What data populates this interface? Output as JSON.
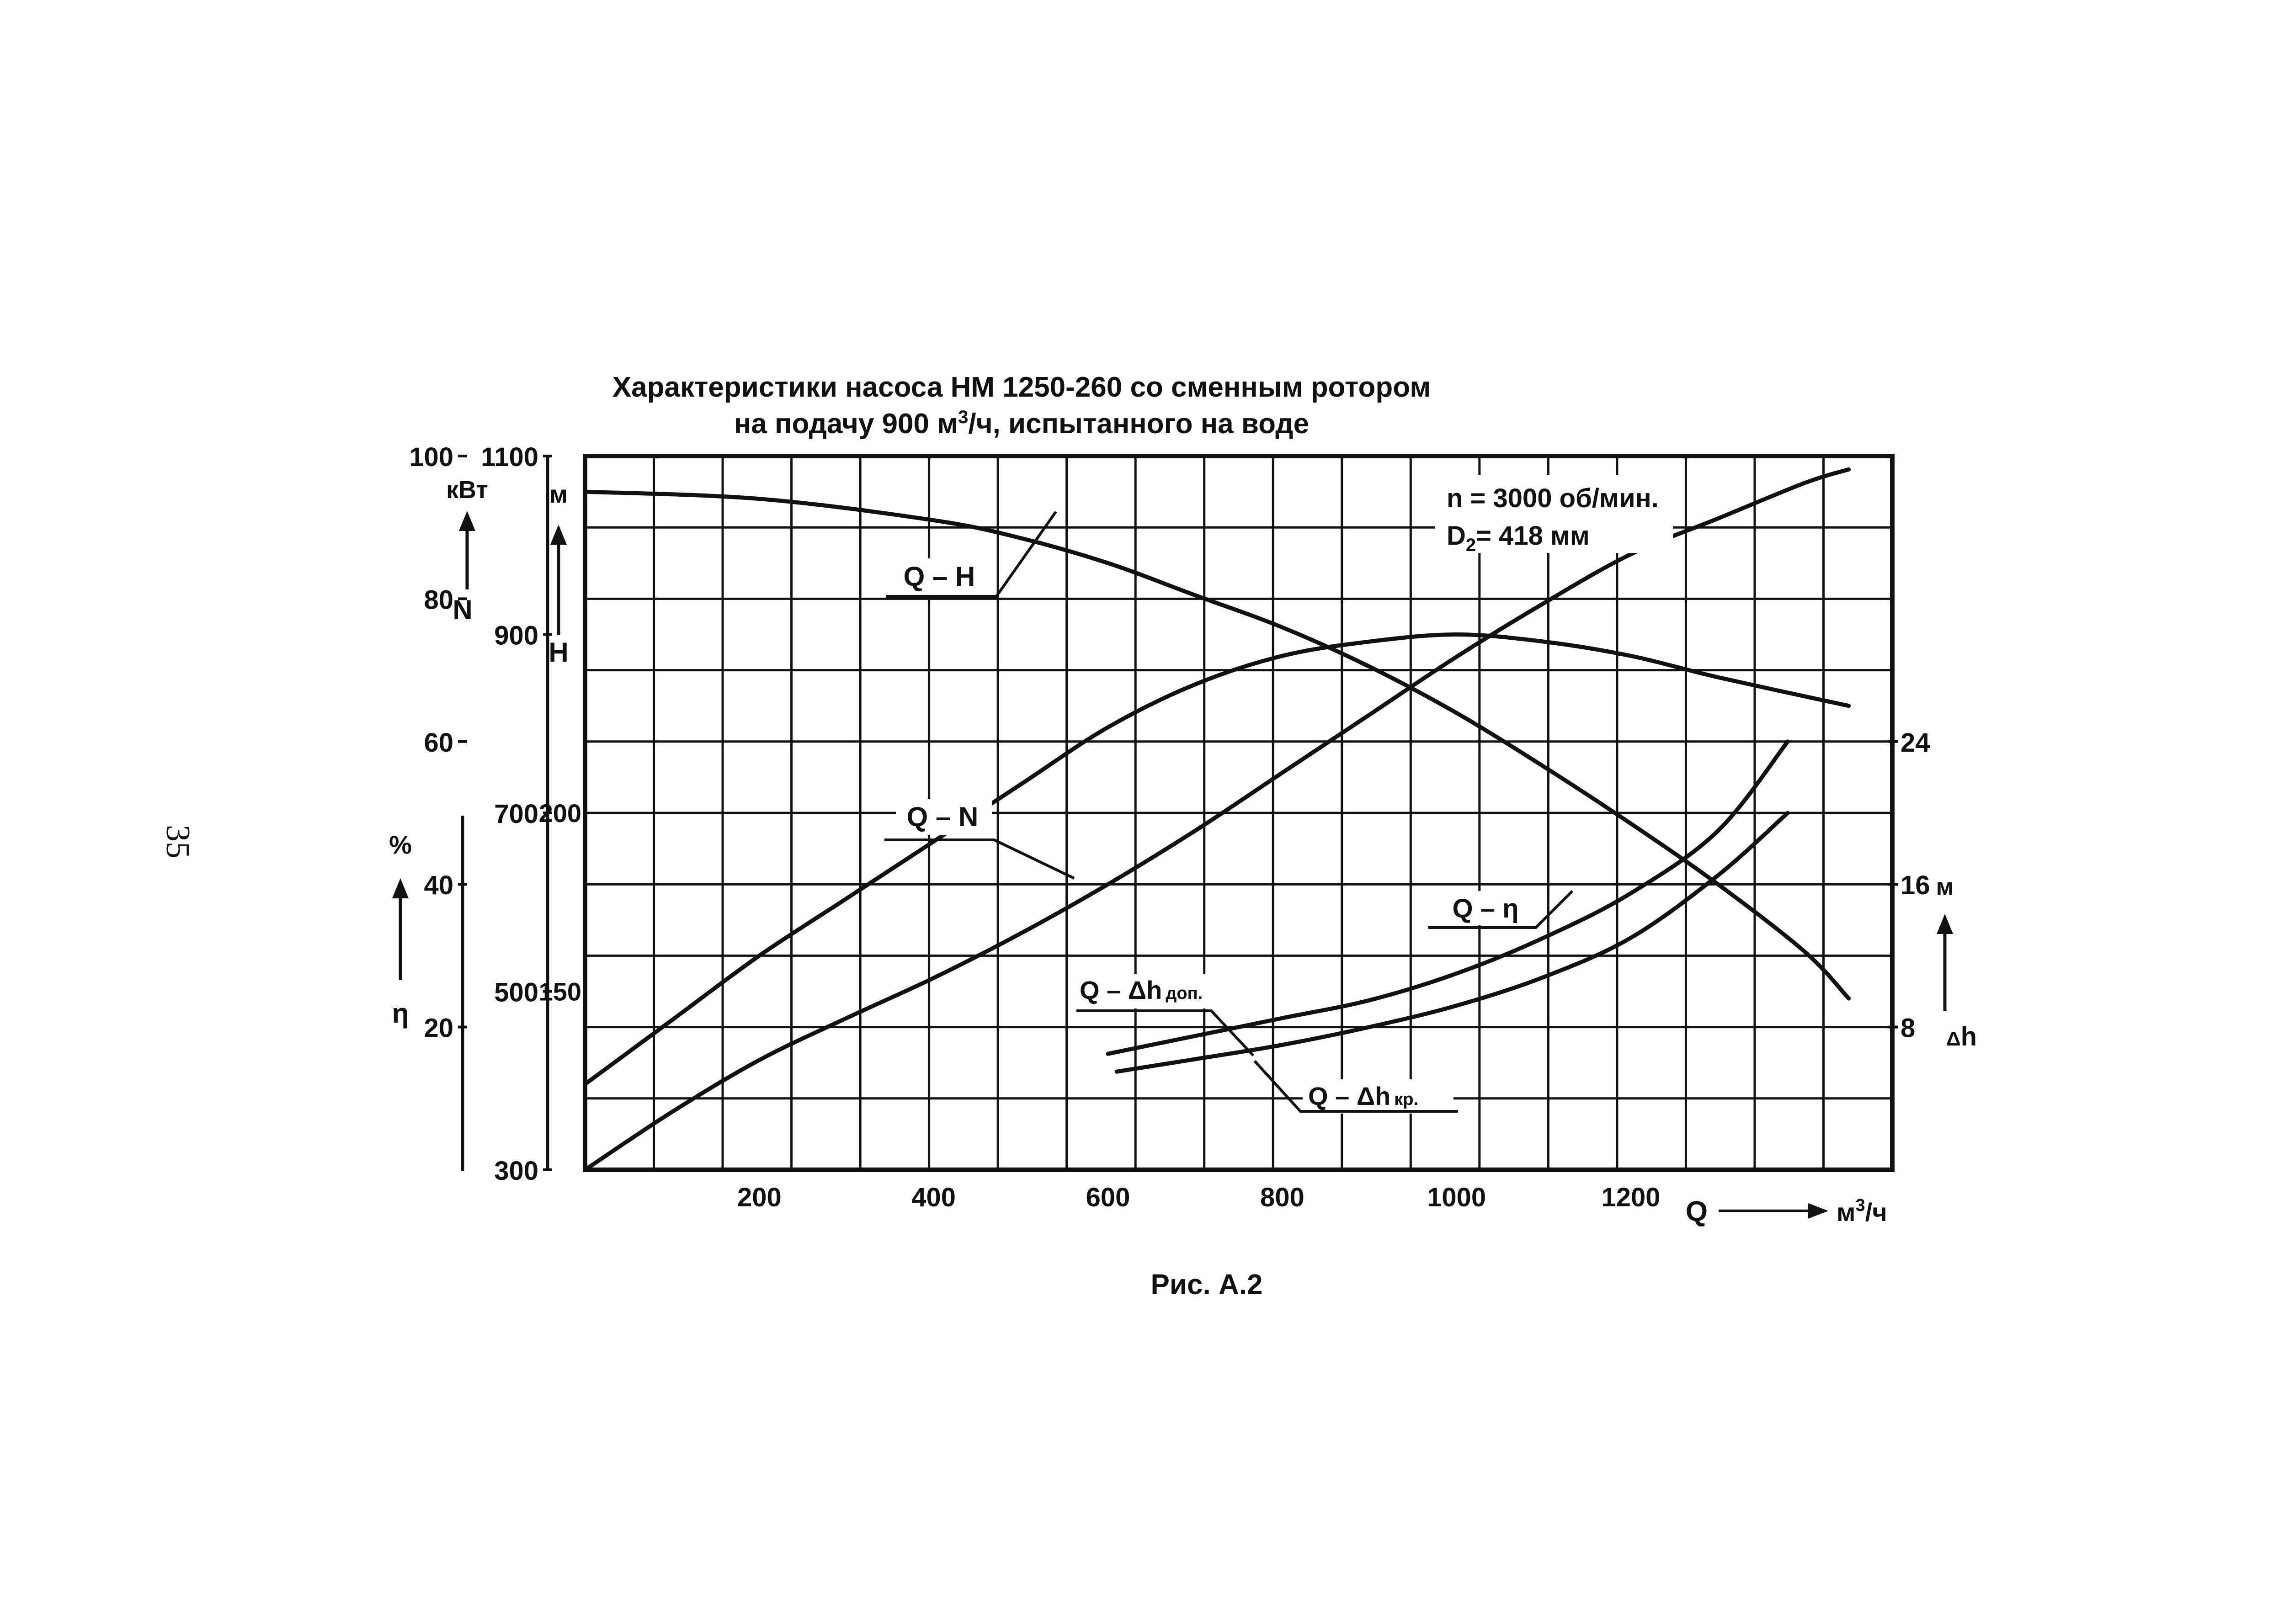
{
  "page": {
    "number": "35",
    "caption": "Рис. А.2"
  },
  "chart_data": {
    "type": "line",
    "title_line1": "Характеристики насоса НМ 1250-260 со сменным ротором",
    "title_line2_pre": "на подачу 900 м",
    "title_line2_sup": "3",
    "title_line2_post": "/ч, испытанного на воде",
    "annotation": {
      "speed": "n = 3000 об/мин.",
      "d_main": "D",
      "d_sub": "2",
      "d_value": "= 418  мм"
    },
    "x_axis": {
      "range": [
        0,
        1500
      ],
      "ticks": [
        200,
        400,
        600,
        800,
        1000,
        1200
      ],
      "tick_labels": [
        "200",
        "400",
        "600",
        "800",
        "1000",
        "1200"
      ],
      "symbol": "Q",
      "unit_pre": "м",
      "unit_sup": "3",
      "unit_post": "/ч"
    },
    "axes": {
      "N": {
        "symbol": "N",
        "unit": "кВт",
        "range": [
          300,
          1100
        ],
        "ticks": [
          "1100",
          "900",
          "700",
          "500",
          "300"
        ]
      },
      "H": {
        "symbol": "H",
        "unit": "м",
        "range": [
          100,
          300
        ],
        "ticks": [
          "200",
          "150"
        ]
      },
      "eta": {
        "symbol": "η",
        "unit": "%",
        "range": [
          0,
          100
        ],
        "ticks": [
          "100",
          "80",
          "60",
          "40",
          "20"
        ]
      },
      "dh": {
        "symbol_delta": "Δ",
        "symbol_h": "h",
        "unit": "м",
        "range": [
          0,
          40
        ],
        "ticks": [
          "24",
          "16",
          "8"
        ]
      }
    },
    "grid": true,
    "series": [
      {
        "label": "Q – H",
        "axis": "H",
        "x": [
          0,
          200,
          400,
          500,
          600,
          700,
          800,
          900,
          1000,
          1100,
          1200,
          1300,
          1400,
          1450
        ],
        "y": [
          290,
          288,
          282,
          277,
          270,
          261,
          252,
          241,
          228,
          213,
          197,
          180,
          161,
          148
        ]
      },
      {
        "label": "Q – N",
        "axis": "N",
        "x": [
          0,
          100,
          200,
          300,
          400,
          500,
          600,
          700,
          800,
          900,
          1000,
          1100,
          1200,
          1300,
          1400,
          1450
        ],
        "y": [
          300,
          365,
          423,
          470,
          515,
          565,
          620,
          680,
          745,
          810,
          875,
          935,
          990,
          1030,
          1070,
          1085
        ]
      },
      {
        "label": "Q – η",
        "axis": "eta",
        "x": [
          0,
          100,
          200,
          300,
          400,
          500,
          600,
          700,
          800,
          900,
          1000,
          1100,
          1200,
          1300,
          1450
        ],
        "y": [
          12,
          21,
          30,
          38,
          46,
          54,
          62,
          68,
          72,
          74,
          75,
          74,
          72,
          69,
          65
        ]
      },
      {
        "label": "Q – Δh доп.",
        "axis": "dh",
        "x": [
          600,
          700,
          800,
          900,
          1000,
          1100,
          1200,
          1300,
          1380
        ],
        "y": [
          6.5,
          7.5,
          8.5,
          9.5,
          11,
          13,
          15.5,
          19,
          24
        ]
      },
      {
        "label": "Q – Δh кр.",
        "axis": "dh",
        "x": [
          610,
          700,
          800,
          900,
          1000,
          1100,
          1200,
          1300,
          1380
        ],
        "y": [
          5.5,
          6.2,
          7,
          8,
          9.2,
          10.8,
          13,
          16.5,
          20
        ]
      }
    ],
    "series_labels": {
      "QH": "Q – H",
      "QN": "Q – N",
      "Qeta": "Q – η",
      "Qdh_dop_main": "Q – Δh",
      "Qdh_dop_sub": "доп.",
      "Qdh_kr_main": "Q – Δh",
      "Qdh_kr_sub": "кр."
    }
  }
}
